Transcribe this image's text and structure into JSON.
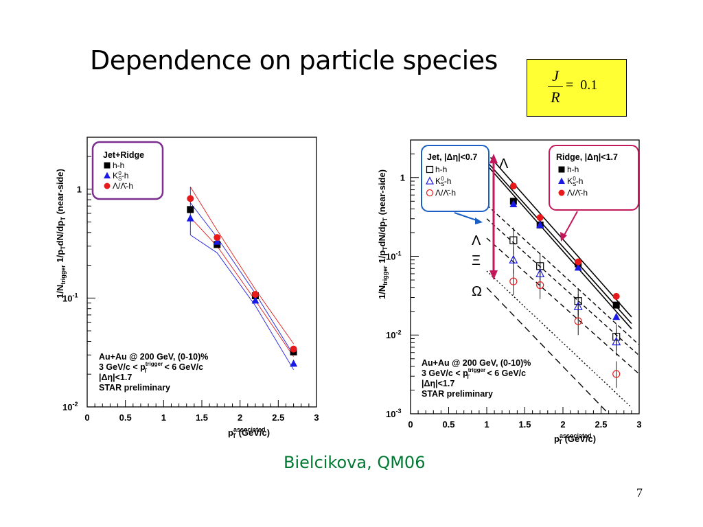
{
  "slide": {
    "title": "Dependence on particle species",
    "formula": {
      "numerator": "J",
      "denominator": "R",
      "equals": "=",
      "value": "0.1"
    },
    "citation": "Bielcikova, QM06",
    "page_number": "7"
  },
  "chart_data": [
    {
      "type": "scatter",
      "ylabel": "1/N_trigger 1/p_T dN/dp_T (near-side)",
      "xlabel": "p_T^associated (GeV/c)",
      "xlim": [
        0,
        3
      ],
      "ylim": [
        0.01,
        3
      ],
      "yscale": "log",
      "xticks": [
        "0",
        "0.5",
        "1",
        "1.5",
        "2",
        "2.5",
        "3"
      ],
      "yticks": [
        {
          "value": 1,
          "label": "1"
        },
        {
          "value": 0.1,
          "label": "10^-1"
        },
        {
          "value": 0.01,
          "label": "10^-2"
        }
      ],
      "legend": {
        "title": "Jet+Ridge",
        "placement": "top-left",
        "entries": [
          "h-h",
          "K_S^0-h",
          "Λ/Λ̄-h"
        ]
      },
      "annotations": [
        "Au+Au @ 200 GeV, (0-10)%",
        "3 GeV/c < p_T^trigger < 6 GeV/c",
        "|Δη|<1.7",
        "STAR preliminary"
      ],
      "x": [
        1.35,
        1.7,
        2.2,
        2.7
      ],
      "series": [
        {
          "name": "h-h",
          "color": "#000000",
          "marker": "square",
          "values": [
            0.65,
            0.31,
            0.105,
            0.032
          ]
        },
        {
          "name": "K_S^0-h",
          "color": "#1a1ae6",
          "marker": "triangle",
          "values": [
            0.54,
            0.33,
            0.095,
            0.025
          ]
        },
        {
          "name": "Λ/Λ̄-h",
          "color": "#e61a1a",
          "marker": "circle",
          "values": [
            0.82,
            0.36,
            0.108,
            0.034
          ]
        }
      ]
    },
    {
      "type": "scatter",
      "ylabel": "1/N_trigger 1/p_T dN/dp_T (near-side)",
      "xlabel": "p_T^associated (GeV/c)",
      "xlim": [
        0,
        3
      ],
      "ylim": [
        0.001,
        3
      ],
      "yscale": "log",
      "xticks": [
        "0",
        "0.5",
        "1",
        "1.5",
        "2",
        "2.5",
        "3"
      ],
      "yticks": [
        {
          "value": 1,
          "label": "1"
        },
        {
          "value": 0.1,
          "label": "10^-1"
        },
        {
          "value": 0.01,
          "label": "10^-2"
        },
        {
          "value": 0.001,
          "label": "10^-3"
        }
      ],
      "legend_jet": {
        "title": "Jet, |Δη|<0.7",
        "placement": "top-left",
        "entries": [
          "h-h",
          "K_S^0-h",
          "Λ/Λ̄-h"
        ]
      },
      "legend_ridge": {
        "title": "Ridge, |Δη|<1.7",
        "placement": "top-right",
        "entries": [
          "h-h",
          "K_S^0-h",
          "Λ/Λ̄-h"
        ]
      },
      "annotations": [
        "Au+Au @ 200 GeV, (0-10)%",
        "3 GeV/c < p_T^trigger < 6 GeV/c",
        "|Δη|<1.7",
        "STAR preliminary"
      ],
      "greek_labels": [
        "Λ",
        "Λ",
        "Ξ",
        "Ω"
      ],
      "x": [
        1.35,
        1.7,
        2.2,
        2.7
      ],
      "series": [
        {
          "name": "Ridge h-h",
          "color": "#000000",
          "marker": "square",
          "values": [
            0.5,
            0.25,
            0.08,
            0.024
          ]
        },
        {
          "name": "Ridge K_S^0-h",
          "color": "#1a1ae6",
          "marker": "triangle",
          "values": [
            0.46,
            0.25,
            0.072,
            0.017
          ]
        },
        {
          "name": "Ridge Λ/Λ̄-h",
          "color": "#e61a1a",
          "marker": "circle",
          "values": [
            0.78,
            0.31,
            0.085,
            0.031
          ]
        },
        {
          "name": "Jet h-h",
          "color": "#000000",
          "marker": "open-square",
          "values": [
            0.16,
            0.075,
            0.027,
            0.0095
          ]
        },
        {
          "name": "Jet K_S^0-h",
          "color": "#1a1ae6",
          "marker": "open-triangle",
          "values": [
            0.09,
            0.06,
            0.023,
            0.0082
          ]
        },
        {
          "name": "Jet Λ/Λ̄-h",
          "color": "#e61a1a",
          "marker": "open-circle",
          "values": [
            0.048,
            0.043,
            0.015,
            0.0032
          ]
        }
      ]
    }
  ]
}
